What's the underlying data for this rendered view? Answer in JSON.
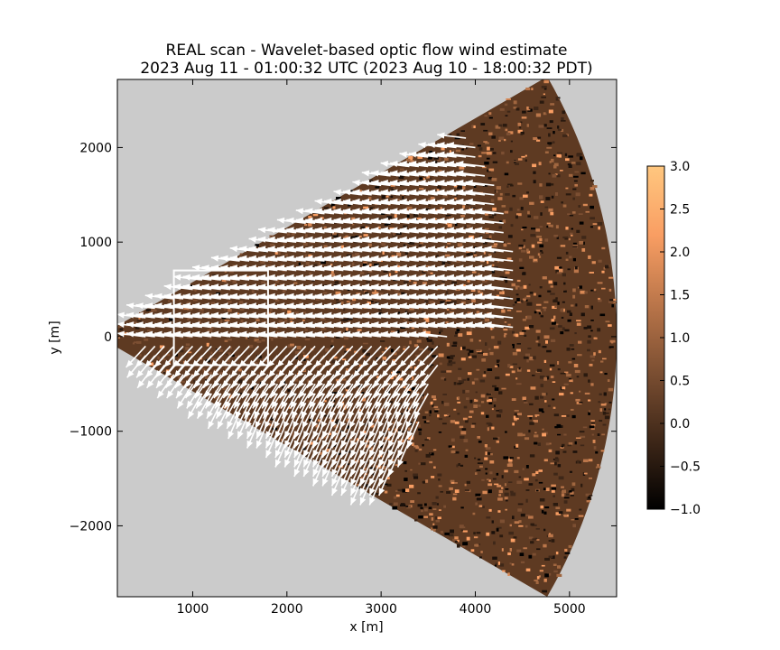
{
  "chart_data": {
    "type": "heatmap",
    "title_line1": "REAL scan - Wavelet-based optic flow wind estimate",
    "title_line2": "2023 Aug 11 - 01:00:32 UTC (2023 Aug 10 - 18:00:32 PDT)",
    "xlabel": "x [m]",
    "ylabel": "y [m]",
    "xlim": [
      200,
      5500
    ],
    "ylim": [
      -2750,
      2720
    ],
    "xticks": [
      1000,
      2000,
      3000,
      4000,
      5000
    ],
    "xtick_labels": [
      "1000",
      "2000",
      "3000",
      "4000",
      "5000"
    ],
    "yticks": [
      2000,
      1000,
      0,
      -1000,
      -2000
    ],
    "ytick_labels": [
      "2000",
      "1000",
      "0",
      "−1000",
      "−2000"
    ],
    "background_color": "#cbcbcb",
    "scan_sector": {
      "origin": [
        0,
        0
      ],
      "min_range_m": 200,
      "max_range_m": 5500,
      "azimuth_min_deg": -30,
      "azimuth_max_deg": 30
    },
    "highlight_box": {
      "x": [
        800,
        1800
      ],
      "y": [
        -300,
        700
      ],
      "color": "#ffffff"
    },
    "wind_vectors": {
      "color": "#ffffff",
      "direction_north_half": "toward -x (westward), slightly up",
      "direction_south_half": "toward south-west"
    },
    "colorbar": {
      "vmin": -1.0,
      "vmax": 3.0,
      "ticks": [
        3.0,
        2.5,
        2.0,
        1.5,
        1.0,
        0.5,
        0.0,
        -0.5,
        -1.0
      ],
      "tick_labels": [
        "3.0",
        "2.5",
        "2.0",
        "1.5",
        "1.0",
        "0.5",
        "0.0",
        "−0.5",
        "−1.0"
      ],
      "colormap": "copper"
    }
  }
}
